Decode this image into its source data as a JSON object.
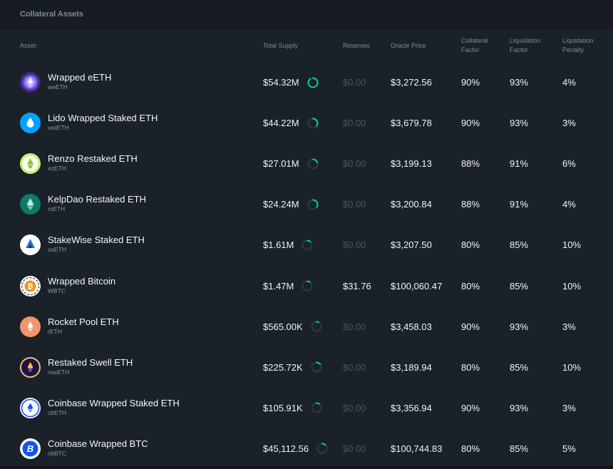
{
  "panel": {
    "title": "Collateral Assets"
  },
  "columns": {
    "asset": "Asset",
    "total_supply": "Total Supply",
    "reserves": "Reserves",
    "oracle_price": "Oracle Price",
    "collateral_factor": [
      "Collateral",
      "Factor"
    ],
    "liquidation_factor": [
      "Liquidation",
      "Factor"
    ],
    "liquidation_penalty": [
      "Liquidation",
      "Penalty"
    ]
  },
  "colors": {
    "accent": "#00d395",
    "muted_value": "#4a5460",
    "background": "#1b2128"
  },
  "rows": [
    {
      "name": "Wrapped eETH",
      "symbol": "weETH",
      "icon": "weeth-icon",
      "supply": "$54.32M",
      "supply_fraction": 0.9,
      "reserves": "$0.00",
      "reserves_muted": true,
      "price": "$3,272.56",
      "cf": "90%",
      "lf": "93%",
      "lp": "4%"
    },
    {
      "name": "Lido Wrapped Staked ETH",
      "symbol": "wstETH",
      "icon": "wsteth-icon",
      "supply": "$44.22M",
      "supply_fraction": 0.35,
      "reserves": "$0.00",
      "reserves_muted": true,
      "price": "$3,679.78",
      "cf": "90%",
      "lf": "93%",
      "lp": "3%"
    },
    {
      "name": "Renzo Restaked ETH",
      "symbol": "ezETH",
      "icon": "ezeth-icon",
      "supply": "$27.01M",
      "supply_fraction": 0.2,
      "reserves": "$0.00",
      "reserves_muted": true,
      "price": "$3,199.13",
      "cf": "88%",
      "lf": "91%",
      "lp": "6%"
    },
    {
      "name": "KelpDao Restaked ETH",
      "symbol": "rsETH",
      "icon": "rseth-icon",
      "supply": "$24.24M",
      "supply_fraction": 0.35,
      "reserves": "$0.00",
      "reserves_muted": true,
      "price": "$3,200.84",
      "cf": "88%",
      "lf": "91%",
      "lp": "4%"
    },
    {
      "name": "StakeWise Staked ETH",
      "symbol": "osETH",
      "icon": "oseth-icon",
      "supply": "$1.61M",
      "supply_fraction": 0.12,
      "reserves": "$0.00",
      "reserves_muted": true,
      "price": "$3,207.50",
      "cf": "80%",
      "lf": "85%",
      "lp": "10%"
    },
    {
      "name": "Wrapped Bitcoin",
      "symbol": "WBTC",
      "icon": "wbtc-icon",
      "supply": "$1.47M",
      "supply_fraction": 0.1,
      "reserves": "$31.76",
      "reserves_muted": false,
      "price": "$100,060.47",
      "cf": "80%",
      "lf": "85%",
      "lp": "10%"
    },
    {
      "name": "Rocket Pool ETH",
      "symbol": "rETH",
      "icon": "reth-icon",
      "supply": "$565.00K",
      "supply_fraction": 0.08,
      "reserves": "$0.00",
      "reserves_muted": true,
      "price": "$3,458.03",
      "cf": "90%",
      "lf": "93%",
      "lp": "3%"
    },
    {
      "name": "Restaked Swell ETH",
      "symbol": "rswETH",
      "icon": "rsweth-icon",
      "supply": "$225.72K",
      "supply_fraction": 0.15,
      "reserves": "$0.00",
      "reserves_muted": true,
      "price": "$3,189.94",
      "cf": "80%",
      "lf": "85%",
      "lp": "10%"
    },
    {
      "name": "Coinbase Wrapped Staked ETH",
      "symbol": "cbETH",
      "icon": "cbeth-icon",
      "supply": "$105.91K",
      "supply_fraction": 0.1,
      "reserves": "$0.00",
      "reserves_muted": true,
      "price": "$3,356.94",
      "cf": "90%",
      "lf": "93%",
      "lp": "3%"
    },
    {
      "name": "Coinbase Wrapped BTC",
      "symbol": "cbBTC",
      "icon": "cbbtc-icon",
      "supply": "$45,112.56",
      "supply_fraction": 0.12,
      "reserves": "$0.00",
      "reserves_muted": true,
      "price": "$100,744.83",
      "cf": "80%",
      "lf": "85%",
      "lp": "5%"
    }
  ]
}
